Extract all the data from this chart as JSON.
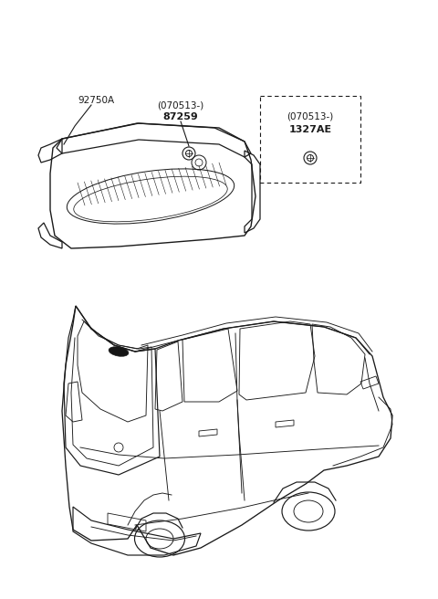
{
  "bg_color": "#ffffff",
  "line_color": "#1a1a1a",
  "label_92750A": "92750A",
  "label_87259_line1": "(070513-)",
  "label_87259_line2": "87259",
  "label_1327AE_line1": "(070513-)",
  "label_1327AE_line2": "1327AE",
  "fig_width": 4.8,
  "fig_height": 6.56,
  "dpi": 100
}
